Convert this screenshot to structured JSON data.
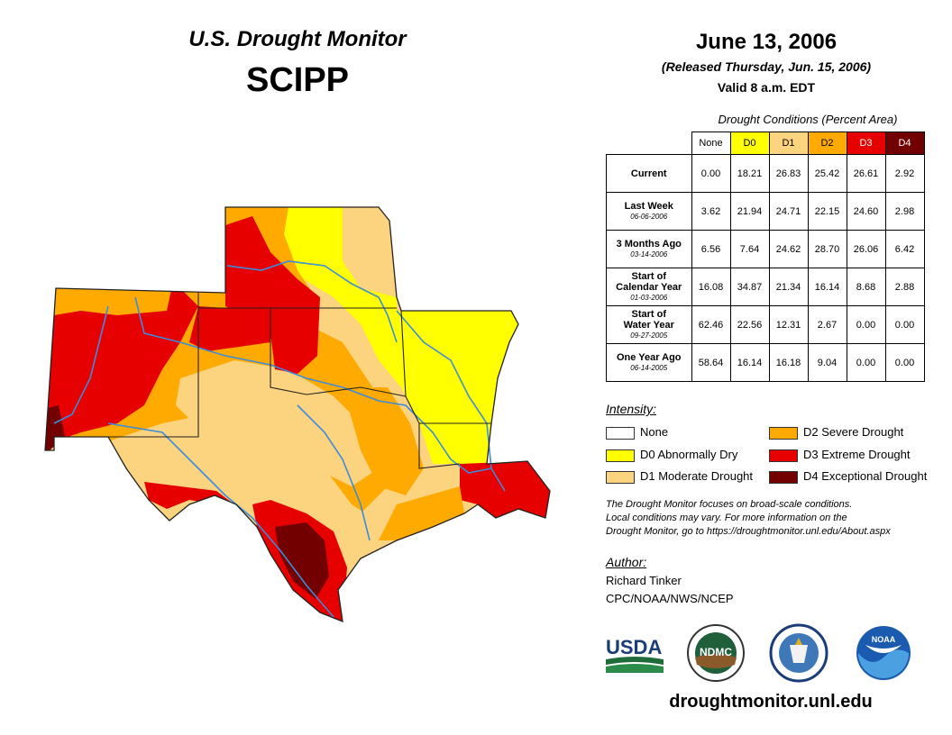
{
  "header": {
    "title": "U.S. Drought Monitor",
    "region": "SCIPP",
    "date": "June 13, 2006",
    "released": "(Released Thursday, Jun. 15, 2006)",
    "valid": "Valid 8 a.m. EDT"
  },
  "table": {
    "caption": "Drought Conditions (Percent Area)",
    "columns": [
      {
        "label": "None",
        "color": "#ffffff",
        "text_color": "#000000"
      },
      {
        "label": "D0",
        "color": "#ffff00",
        "text_color": "#000000"
      },
      {
        "label": "D1",
        "color": "#fcd37f",
        "text_color": "#000000"
      },
      {
        "label": "D2",
        "color": "#ffaa00",
        "text_color": "#000000"
      },
      {
        "label": "D3",
        "color": "#e60000",
        "text_color": "#ffffff"
      },
      {
        "label": "D4",
        "color": "#730000",
        "text_color": "#ffffff"
      }
    ],
    "rows": [
      {
        "label": "Current",
        "label2": "",
        "date": "",
        "values": [
          "0.00",
          "18.21",
          "26.83",
          "25.42",
          "26.61",
          "2.92"
        ]
      },
      {
        "label": "Last Week",
        "label2": "",
        "date": "06-06-2006",
        "values": [
          "3.62",
          "21.94",
          "24.71",
          "22.15",
          "24.60",
          "2.98"
        ]
      },
      {
        "label": "3 Months Ago",
        "label2": "",
        "date": "03-14-2006",
        "values": [
          "6.56",
          "7.64",
          "24.62",
          "28.70",
          "26.06",
          "6.42"
        ]
      },
      {
        "label": "Start of",
        "label2": "Calendar Year",
        "date": "01-03-2006",
        "values": [
          "16.08",
          "34.87",
          "21.34",
          "16.14",
          "8.68",
          "2.88"
        ]
      },
      {
        "label": "Start of",
        "label2": "Water Year",
        "date": "09-27-2005",
        "values": [
          "62.46",
          "22.56",
          "12.31",
          "2.67",
          "0.00",
          "0.00"
        ]
      },
      {
        "label": "One Year Ago",
        "label2": "",
        "date": "06-14-2005",
        "values": [
          "58.64",
          "16.14",
          "16.18",
          "9.04",
          "0.00",
          "0.00"
        ]
      }
    ]
  },
  "legend": {
    "title": "Intensity:",
    "items": [
      {
        "label": "None",
        "color": "#ffffff"
      },
      {
        "label": "D0 Abnormally Dry",
        "color": "#ffff00"
      },
      {
        "label": "D1 Moderate Drought",
        "color": "#fcd37f"
      },
      {
        "label": "D2 Severe Drought",
        "color": "#ffaa00"
      },
      {
        "label": "D3 Extreme Drought",
        "color": "#e60000"
      },
      {
        "label": "D4 Exceptional Drought",
        "color": "#730000"
      }
    ]
  },
  "note": {
    "line1": "The Drought Monitor focuses on broad-scale conditions.",
    "line2": "Local conditions may vary. For more information on the",
    "line3": "Drought Monitor, go to https://droughtmonitor.unl.edu/About.aspx"
  },
  "author": {
    "title": "Author:",
    "name": "Richard Tinker",
    "org": "CPC/NOAA/NWS/NCEP"
  },
  "logos": {
    "usda": "USDA",
    "ndmc": "NDMC",
    "noaa": "NOAA"
  },
  "footer": {
    "url": "droughtmonitor.unl.edu"
  }
}
